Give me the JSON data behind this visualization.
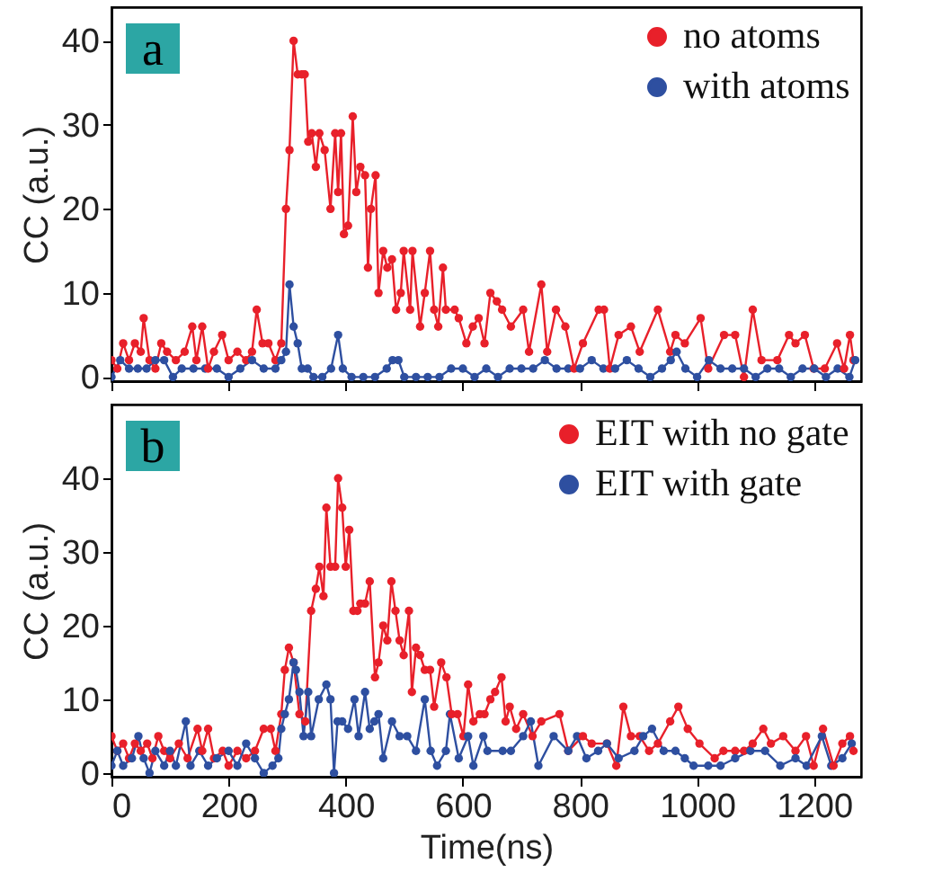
{
  "chart_data": [
    {
      "type": "line",
      "ylabel": "CC (a.u.)",
      "annotations": [
        "a"
      ],
      "xlim": [
        0,
        1280
      ],
      "xticks": [
        0,
        200,
        400,
        600,
        800,
        1000,
        1200
      ],
      "ylim": [
        -0.5,
        44
      ],
      "yticks": [
        0,
        10,
        20,
        30,
        40
      ],
      "tick_labels": "y",
      "legend": "top right",
      "marker": "circle",
      "line_style": "solid",
      "series": [
        {
          "name": "no atoms",
          "color": "#e8202a",
          "x": [
            0,
            10,
            20,
            30,
            40,
            50,
            55,
            65,
            75,
            85,
            95,
            110,
            125,
            138,
            145,
            155,
            165,
            175,
            189,
            200,
            215,
            230,
            240,
            248,
            258,
            268,
            280,
            290,
            298,
            304,
            311,
            318,
            325,
            330,
            336,
            342,
            349,
            355,
            364,
            374,
            382,
            387,
            392,
            397,
            404,
            412,
            418,
            425,
            433,
            438,
            443,
            451,
            456,
            464,
            471,
            479,
            486,
            494,
            499,
            510,
            514,
            527,
            535,
            544,
            551,
            558,
            566,
            571,
            586,
            593,
            606,
            617,
            627,
            637,
            647,
            658,
            667,
            682,
            703,
            713,
            734,
            744,
            759,
            775,
            790,
            805,
            832,
            841,
            851,
            866,
            887,
            902,
            933,
            954,
            963,
            979,
            1006,
            1019,
            1046,
            1065,
            1080,
            1095,
            1110,
            1137,
            1157,
            1168,
            1184,
            1199,
            1218,
            1239,
            1251,
            1261,
            1267
          ],
          "values": [
            2,
            1,
            4,
            2,
            4,
            3,
            7,
            2,
            1,
            4,
            3,
            2,
            3,
            6,
            2,
            6,
            1,
            3,
            5,
            2,
            3,
            2,
            3,
            8,
            4,
            4,
            2,
            4,
            20,
            27,
            40,
            36,
            36,
            36,
            28,
            29,
            25,
            29,
            27,
            20,
            29,
            22,
            29,
            17,
            18,
            31,
            22,
            25,
            24,
            13,
            20,
            24,
            10,
            15,
            13,
            14,
            8,
            10,
            15,
            8,
            15,
            6,
            10,
            15,
            8,
            6,
            13,
            8,
            8,
            7,
            4,
            6,
            7,
            4,
            10,
            9,
            8,
            6,
            8,
            3,
            11,
            3,
            8,
            6,
            1,
            4,
            8,
            8,
            1,
            5,
            6,
            3,
            8,
            3,
            5,
            4,
            7,
            1,
            5,
            5,
            0,
            8,
            2,
            2,
            5,
            4,
            5,
            1,
            1,
            4,
            1,
            5,
            2
          ]
        },
        {
          "name": "with atoms",
          "color": "#2e4fa0",
          "x": [
            0,
            15,
            30,
            45,
            60,
            75,
            90,
            105,
            120,
            140,
            160,
            180,
            200,
            220,
            240,
            260,
            280,
            290,
            298,
            304,
            311,
            318,
            325,
            335,
            345,
            360,
            375,
            387,
            395,
            410,
            430,
            450,
            470,
            480,
            490,
            500,
            520,
            540,
            560,
            580,
            600,
            620,
            640,
            660,
            680,
            700,
            720,
            740,
            760,
            780,
            800,
            820,
            840,
            860,
            880,
            900,
            920,
            940,
            955,
            965,
            980,
            1000,
            1020,
            1040,
            1060,
            1080,
            1100,
            1120,
            1140,
            1160,
            1180,
            1200,
            1220,
            1240,
            1260,
            1270
          ],
          "values": [
            0,
            2,
            1,
            1,
            1,
            2,
            2,
            0,
            1,
            1,
            1,
            1,
            0,
            1,
            2,
            1,
            1,
            2,
            3,
            11,
            6,
            4,
            1,
            1,
            0,
            0,
            1,
            5,
            1,
            0,
            0,
            0,
            1,
            2,
            2,
            0,
            0,
            0,
            0,
            1,
            1,
            0,
            1,
            0,
            1,
            1,
            1,
            2,
            1,
            1,
            1,
            2,
            1,
            1,
            2,
            1,
            0,
            1,
            2,
            3,
            1,
            0,
            2,
            1,
            1,
            1,
            0,
            1,
            1,
            0,
            1,
            1,
            0,
            1,
            0,
            2
          ]
        }
      ]
    },
    {
      "type": "line",
      "ylabel": "CC (a.u.)",
      "xlabel": "Time(ns)",
      "annotations": [
        "b"
      ],
      "xlim": [
        0,
        1280
      ],
      "xticks": [
        0,
        200,
        400,
        600,
        800,
        1000,
        1200
      ],
      "ylim": [
        -0.5,
        50
      ],
      "yticks": [
        0,
        10,
        20,
        30,
        40
      ],
      "legend": "top right",
      "marker": "circle",
      "line_style": "solid",
      "series": [
        {
          "name": "EIT with no gate",
          "color": "#e8202a",
          "x": [
            0,
            10,
            20,
            30,
            40,
            50,
            61,
            70,
            80,
            90,
            100,
            115,
            130,
            147,
            155,
            165,
            175,
            190,
            200,
            215,
            230,
            245,
            260,
            272,
            280,
            290,
            296,
            303,
            311,
            321,
            331,
            341,
            349,
            355,
            362,
            367,
            374,
            382,
            387,
            394,
            400,
            406,
            413,
            420,
            425,
            433,
            441,
            450,
            456,
            464,
            471,
            478,
            485,
            492,
            499,
            508,
            513,
            520,
            527,
            535,
            544,
            551,
            563,
            572,
            581,
            591,
            601,
            609,
            618,
            629,
            637,
            647,
            655,
            666,
            673,
            680,
            691,
            703,
            719,
            734,
            765,
            780,
            805,
            820,
            846,
            862,
            874,
            887,
            902,
            918,
            933,
            954,
            968,
            984,
            1004,
            1030,
            1045,
            1065,
            1080,
            1095,
            1113,
            1126,
            1147,
            1168,
            1186,
            1199,
            1215,
            1233,
            1248,
            1261,
            1267
          ],
          "values": [
            5,
            3,
            4,
            2,
            4,
            3,
            4,
            2,
            5,
            3,
            2,
            4,
            2,
            6,
            3,
            6,
            2,
            3,
            1,
            3,
            2,
            3,
            6,
            6,
            3,
            8,
            14,
            17,
            15,
            8,
            7,
            22,
            25,
            28,
            24,
            36,
            28,
            28,
            40,
            36,
            28,
            33,
            22,
            22,
            23,
            23,
            26,
            13,
            15,
            20,
            18,
            26,
            22,
            18,
            16,
            22,
            11,
            17,
            16,
            14,
            14,
            9,
            15,
            13,
            8,
            8,
            5,
            12,
            7,
            8,
            8,
            10,
            11,
            13,
            7,
            9,
            6,
            8,
            5,
            7,
            8,
            3,
            5,
            4,
            4,
            1,
            9,
            5,
            5,
            3,
            4,
            7,
            9,
            6,
            4,
            2,
            3,
            3,
            3,
            4,
            6,
            4,
            5,
            3,
            5,
            1,
            6,
            1,
            4,
            5,
            3
          ]
        },
        {
          "name": "EIT with gate",
          "color": "#2e4fa0",
          "x": [
            0,
            10,
            20,
            35,
            46,
            55,
            65,
            75,
            90,
            100,
            110,
            127,
            135,
            150,
            165,
            180,
            200,
            215,
            230,
            245,
            260,
            275,
            285,
            290,
            296,
            303,
            311,
            315,
            321,
            328,
            336,
            341,
            354,
            367,
            374,
            380,
            386,
            394,
            404,
            415,
            422,
            433,
            441,
            449,
            456,
            464,
            479,
            492,
            505,
            520,
            535,
            545,
            556,
            571,
            578,
            593,
            609,
            618,
            635,
            642,
            668,
            682,
            703,
            716,
            729,
            755,
            780,
            795,
            811,
            831,
            846,
            866,
            893,
            908,
            923,
            943,
            963,
            979,
            994,
            1019,
            1040,
            1065,
            1091,
            1116,
            1142,
            1168,
            1187,
            1213,
            1229,
            1248,
            1264
          ],
          "values": [
            1,
            3,
            1,
            2,
            5,
            2,
            0,
            3,
            1,
            3,
            1,
            7,
            1,
            3,
            1,
            2,
            3,
            1,
            4,
            2,
            0,
            1,
            2,
            6,
            8,
            10,
            15,
            14,
            11,
            5,
            11,
            5,
            10,
            12,
            10,
            0,
            7,
            7,
            6,
            10,
            5,
            11,
            6,
            7,
            8,
            2,
            7,
            5,
            5,
            3,
            10,
            3,
            1,
            3,
            8,
            2,
            5,
            1,
            5,
            3,
            3,
            3,
            5,
            7,
            1,
            5,
            3,
            5,
            2,
            3,
            4,
            2,
            3,
            5,
            6,
            3,
            3,
            2,
            1,
            1,
            1,
            2,
            3,
            3,
            1,
            2,
            1,
            5,
            1,
            2,
            4
          ]
        }
      ]
    }
  ]
}
